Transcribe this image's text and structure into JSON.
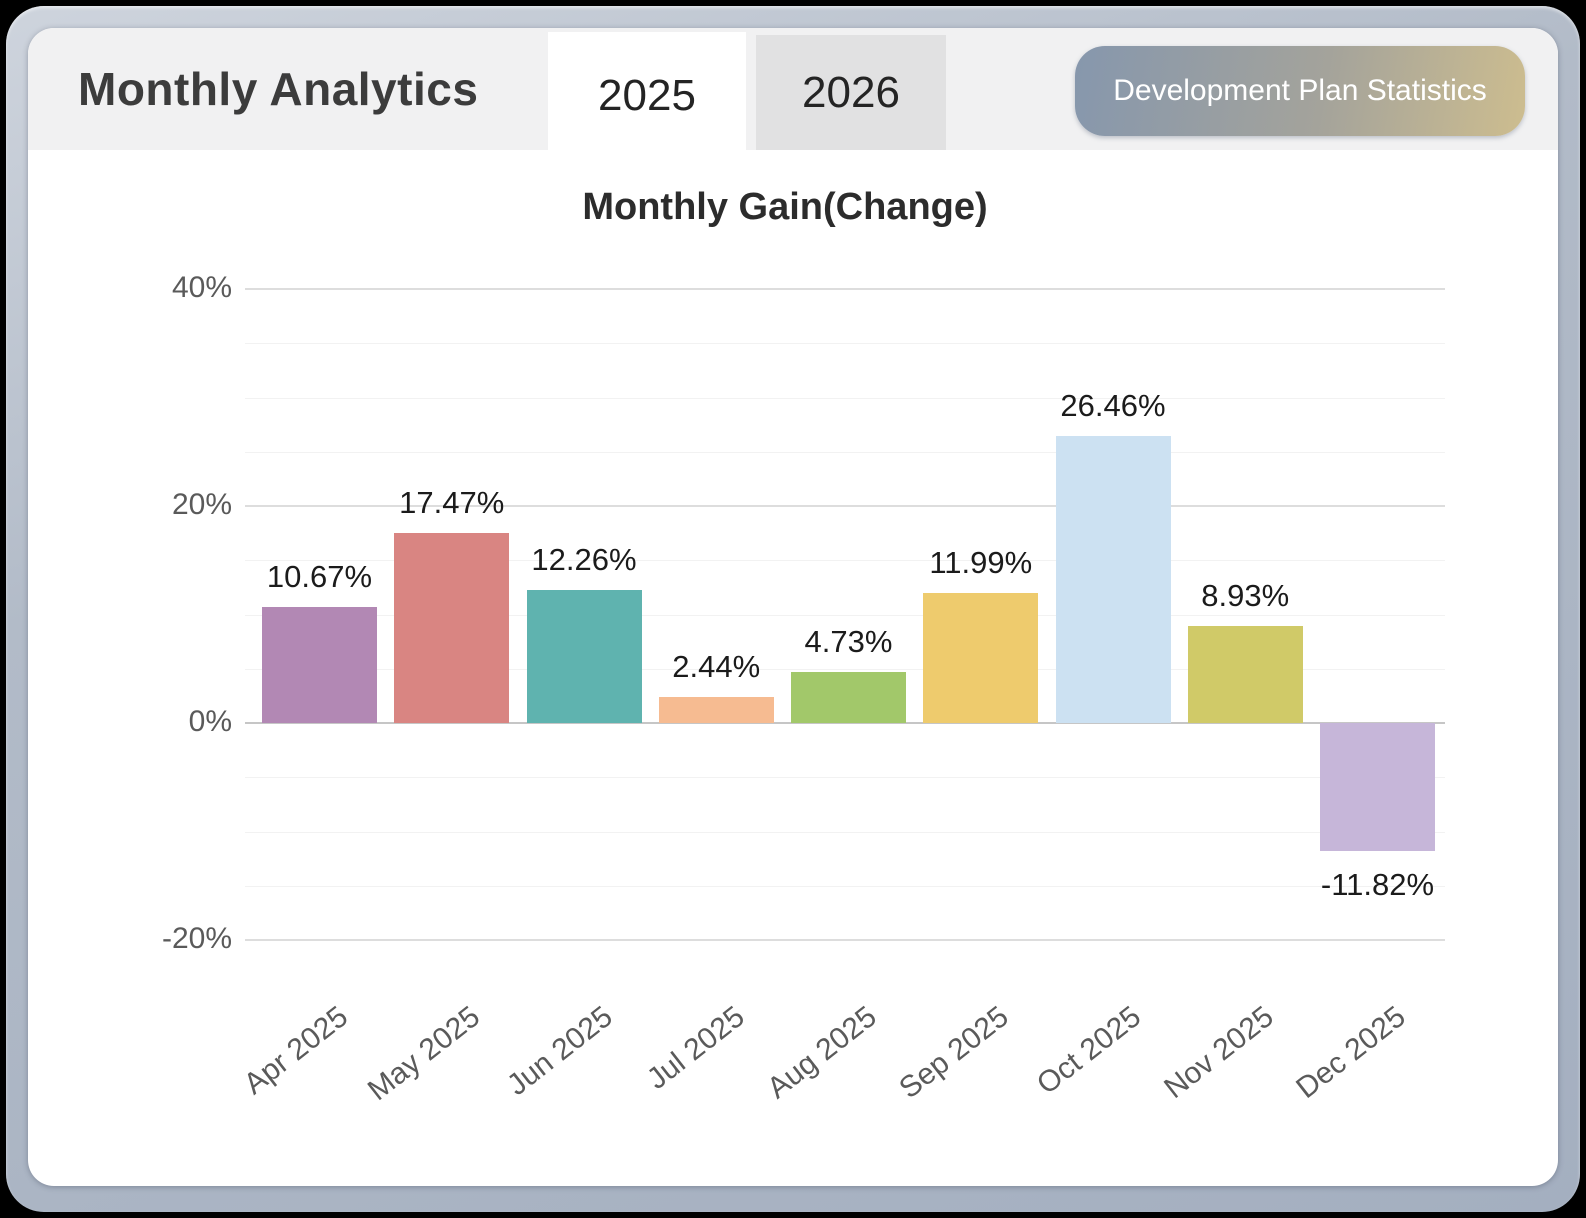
{
  "header": {
    "title": "Monthly Analytics",
    "tabs": [
      {
        "label": "2025",
        "active": true
      },
      {
        "label": "2026",
        "active": false
      }
    ],
    "badge_label": "Development Plan Statistics"
  },
  "colors": {
    "frame": "#aeb8c6",
    "header_band": "#f1f1f2",
    "tab_active_bg": "#ffffff",
    "tab_inactive_bg": "#e1e1e2",
    "badge_gradient_start": "#8697ad",
    "badge_gradient_end": "#cdbd8f",
    "badge_text": "#ffffff",
    "axis_label": "#5a5a5a",
    "value_label": "#1b1b1b",
    "gridline_major": "#dddddd",
    "gridline_minor": "#f2f2f2",
    "zero_line": "#c6c6c6"
  },
  "chart_data": {
    "type": "bar",
    "title": "Monthly Gain(Change)",
    "categories": [
      "Apr 2025",
      "May 2025",
      "Jun 2025",
      "Jul 2025",
      "Aug 2025",
      "Sep 2025",
      "Oct 2025",
      "Nov 2025",
      "Dec 2025"
    ],
    "values": [
      10.67,
      17.47,
      12.26,
      2.44,
      4.73,
      11.99,
      26.46,
      8.93,
      -11.82
    ],
    "value_labels": [
      "10.67%",
      "17.47%",
      "12.26%",
      "2.44%",
      "4.73%",
      "11.99%",
      "26.46%",
      "8.93%",
      "-11.82%"
    ],
    "bar_colors": [
      "#b288b4",
      "#d98582",
      "#5fb3af",
      "#f6bb91",
      "#a2c86a",
      "#eecb6d",
      "#cce1f2",
      "#d0ca68",
      "#c6b6d9"
    ],
    "xlabel": "",
    "ylabel": "",
    "y_ticks": [
      {
        "label": "40%",
        "value": 40
      },
      {
        "label": "20%",
        "value": 20
      },
      {
        "label": "0%",
        "value": 0
      },
      {
        "label": "-20%",
        "value": -20
      }
    ],
    "ylim": [
      -20,
      40
    ],
    "grid": true,
    "legend": false
  }
}
